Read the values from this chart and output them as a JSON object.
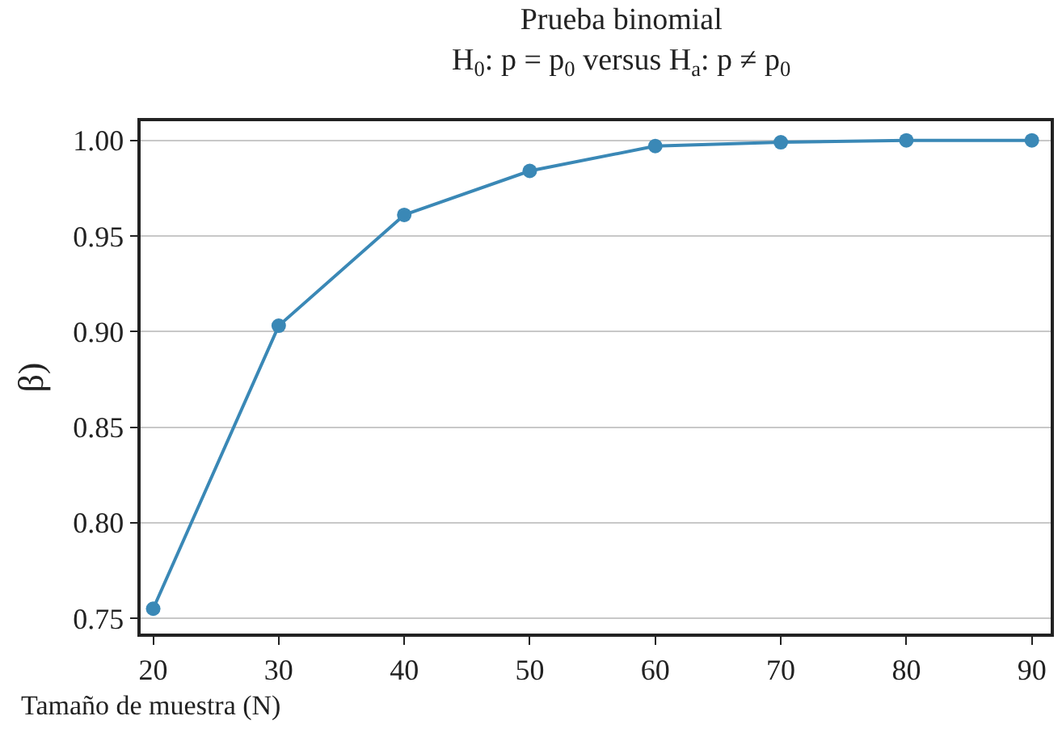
{
  "chart_data": {
    "type": "line",
    "title": "Prueba binomial",
    "subtitle": "H$_{0}$: p = p$_{0}$ versus H$_{a}$: p ≠ p$_{0}$",
    "xlabel": "Tamaño de muestra (N)",
    "ylabel": "β)",
    "x": [
      20,
      30,
      40,
      50,
      60,
      70,
      80,
      90
    ],
    "series": [
      {
        "color": "#3a88b6",
        "values": [
          0.755,
          0.903,
          0.961,
          0.984,
          0.997,
          0.999,
          1.0,
          1.0
        ]
      }
    ],
    "xlim": [
      19,
      91.5
    ],
    "xticks": [
      20,
      30,
      40,
      50,
      60,
      70,
      80,
      90
    ],
    "ylim": [
      0.742,
      1.01
    ],
    "yticks": [
      {
        "value": 0.75,
        "label": "0.75"
      },
      {
        "value": 0.8,
        "label": "0.80"
      },
      {
        "value": 0.85,
        "label": "0.85"
      },
      {
        "value": 0.9,
        "label": "0.90"
      },
      {
        "value": 0.95,
        "label": "0.95"
      },
      {
        "value": 1.0,
        "label": "1.00"
      }
    ],
    "grid": "y",
    "marker": "circle",
    "line_style": "solid"
  }
}
